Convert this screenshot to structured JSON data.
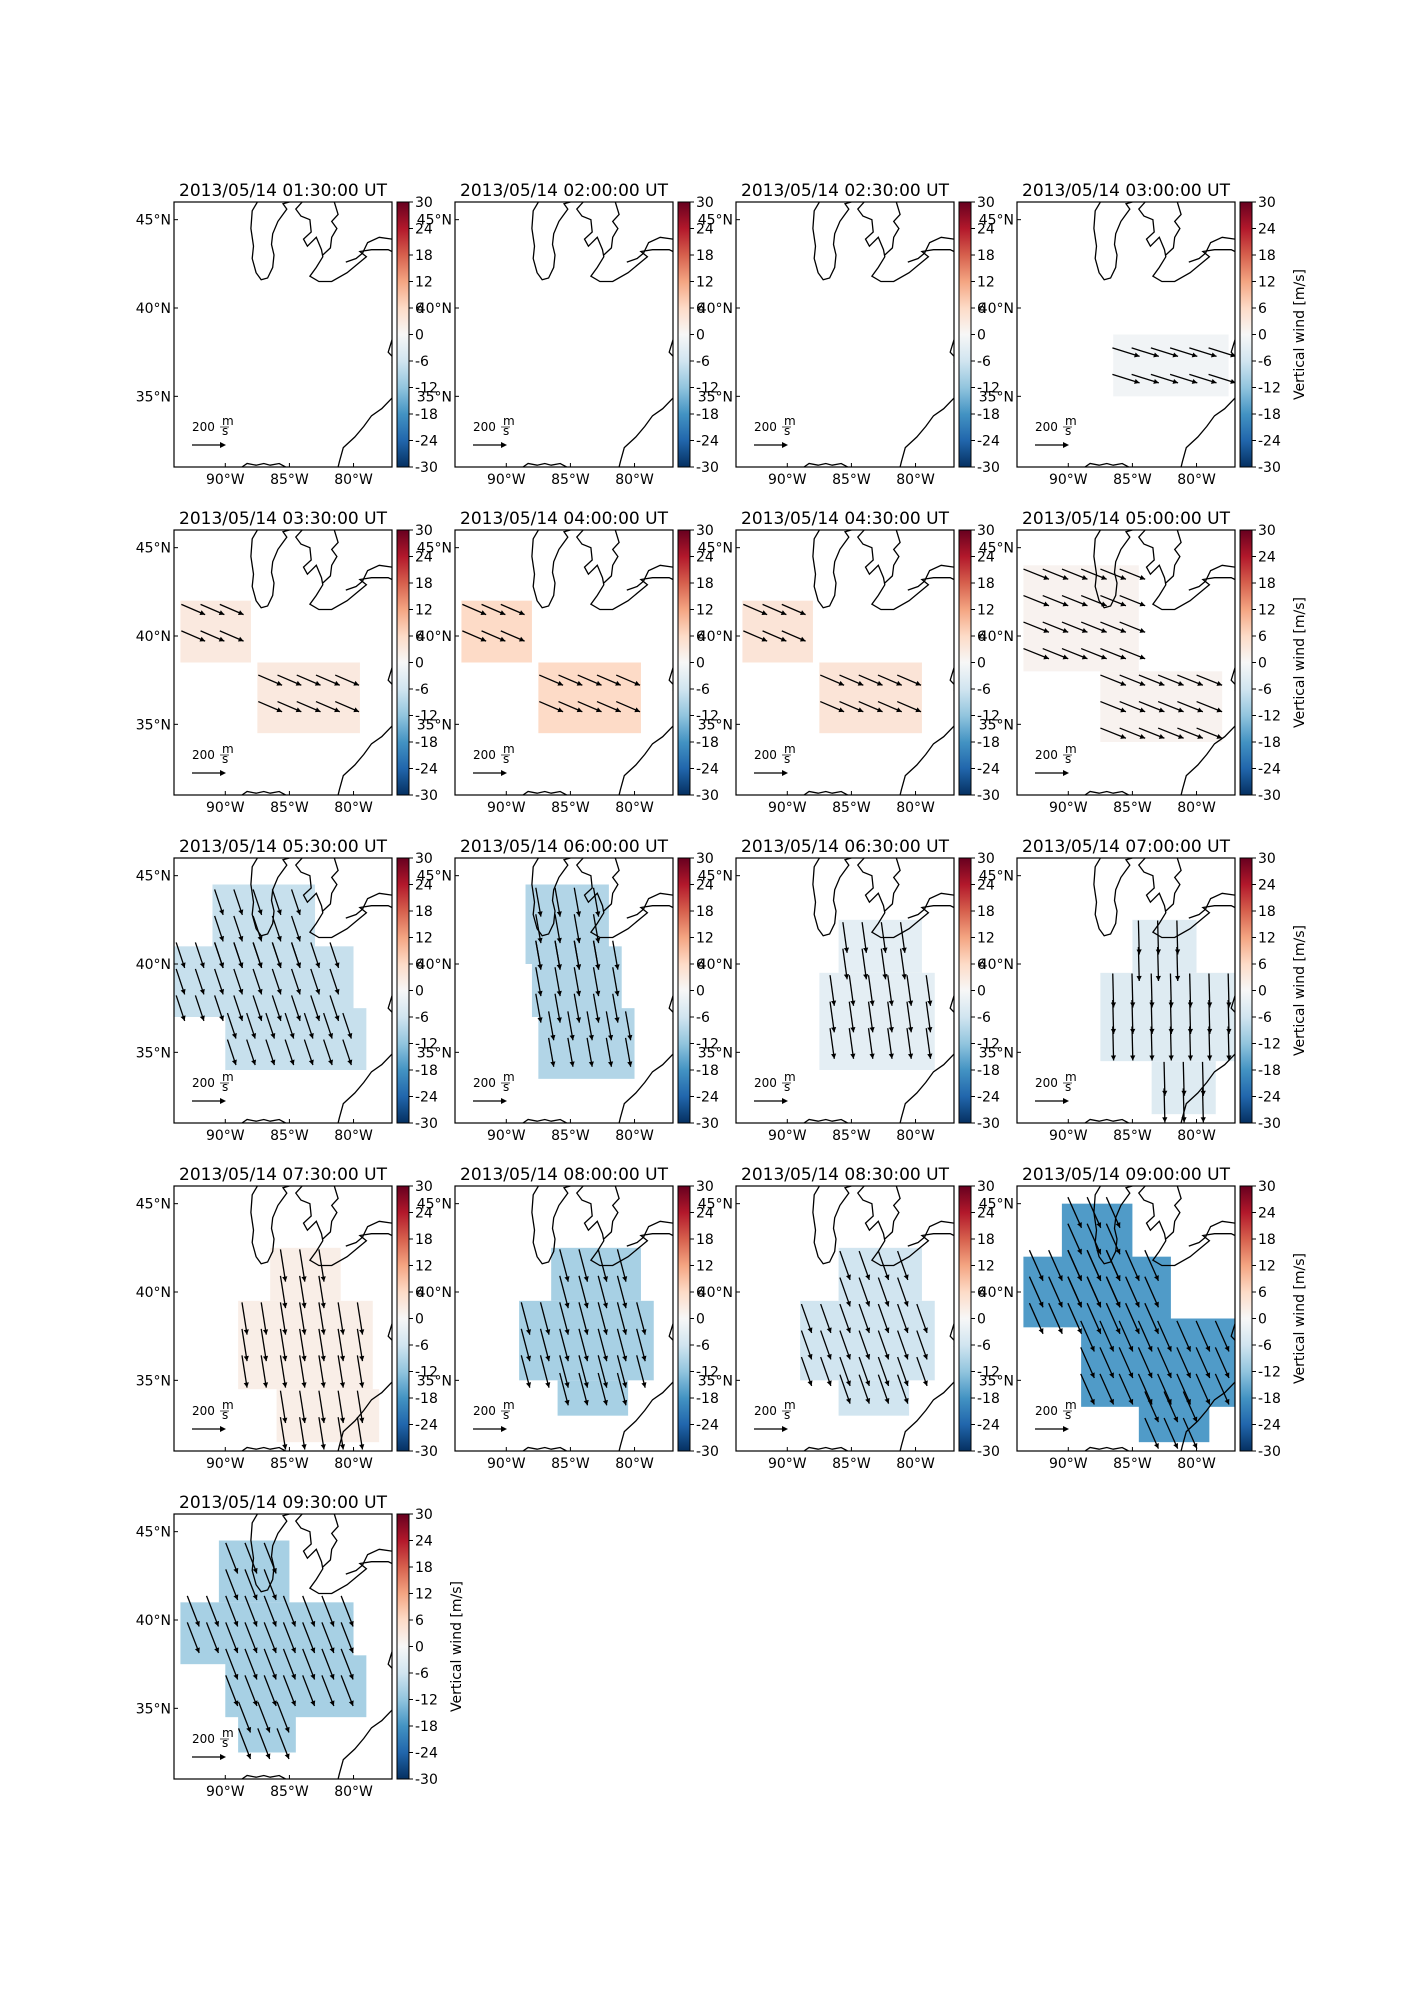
{
  "figure": {
    "colorbar": {
      "ticks": [
        30,
        24,
        18,
        12,
        6,
        0,
        -6,
        -12,
        -18,
        -24,
        -30
      ],
      "label": "Vertical wind [m/s]",
      "range": [
        -30,
        30
      ],
      "colormap": [
        "#053061",
        "#2166ac",
        "#4393c3",
        "#92c5de",
        "#d1e5f0",
        "#f7f7f7",
        "#fddbc7",
        "#f4a582",
        "#d6604d",
        "#b2182b",
        "#67001f"
      ]
    },
    "lon_ticks": [
      "90°W",
      "85°W",
      "80°W"
    ],
    "lat_ticks": [
      "45°N",
      "40°N",
      "35°N"
    ],
    "scale_arrow": {
      "value": "200",
      "unit_num": "m",
      "unit_den": "s"
    },
    "coast_color": "#000000",
    "arrow_color": "#000000"
  },
  "chart_data": [
    {
      "type": "heatmap",
      "title": "2013/05/14 01:30:00 UT",
      "value": null,
      "regions": [],
      "arrow": null
    },
    {
      "type": "heatmap",
      "title": "2013/05/14 02:00:00 UT",
      "value": null,
      "regions": [],
      "arrow": null
    },
    {
      "type": "heatmap",
      "title": "2013/05/14 02:30:00 UT",
      "value": null,
      "regions": [],
      "arrow": null
    },
    {
      "type": "heatmap",
      "title": "2013/05/14 03:00:00 UT",
      "value": -1,
      "regions": [
        {
          "lon": [
            -86.5,
            -77.5
          ],
          "lat": [
            35,
            38.5
          ]
        }
      ],
      "arrow": {
        "east": 160,
        "north": -50
      }
    },
    {
      "type": "heatmap",
      "title": "2013/05/14 03:30:00 UT",
      "value": 3,
      "regions": [
        {
          "lon": [
            -93.5,
            -88
          ],
          "lat": [
            38.5,
            42
          ]
        },
        {
          "lon": [
            -87.5,
            -79.5
          ],
          "lat": [
            34.5,
            38.5
          ]
        }
      ],
      "arrow": {
        "east": 140,
        "north": -60
      }
    },
    {
      "type": "heatmap",
      "title": "2013/05/14 04:00:00 UT",
      "value": 6,
      "regions": [
        {
          "lon": [
            -93.5,
            -88
          ],
          "lat": [
            38.5,
            42
          ]
        },
        {
          "lon": [
            -87.5,
            -79.5
          ],
          "lat": [
            34.5,
            38.5
          ]
        }
      ],
      "arrow": {
        "east": 140,
        "north": -60
      }
    },
    {
      "type": "heatmap",
      "title": "2013/05/14 04:30:00 UT",
      "value": 4,
      "regions": [
        {
          "lon": [
            -93.5,
            -88
          ],
          "lat": [
            38.5,
            42
          ]
        },
        {
          "lon": [
            -87.5,
            -79.5
          ],
          "lat": [
            34.5,
            38.5
          ]
        }
      ],
      "arrow": {
        "east": 140,
        "north": -60
      }
    },
    {
      "type": "heatmap",
      "title": "2013/05/14 05:00:00 UT",
      "value": 1,
      "regions": [
        {
          "lon": [
            -93.5,
            -84.5
          ],
          "lat": [
            38,
            44
          ]
        },
        {
          "lon": [
            -87.5,
            -78
          ],
          "lat": [
            34,
            38
          ]
        }
      ],
      "arrow": {
        "east": 150,
        "north": -60
      }
    },
    {
      "type": "heatmap",
      "title": "2013/05/14 05:30:00 UT",
      "value": -7,
      "regions": [
        {
          "lon": [
            -91,
            -83
          ],
          "lat": [
            40,
            44.5
          ]
        },
        {
          "lon": [
            -94,
            -80
          ],
          "lat": [
            37,
            41
          ]
        },
        {
          "lon": [
            -90,
            -79
          ],
          "lat": [
            34,
            37.5
          ]
        }
      ],
      "arrow": {
        "east": 50,
        "north": -150
      }
    },
    {
      "type": "heatmap",
      "title": "2013/05/14 06:00:00 UT",
      "value": -9,
      "regions": [
        {
          "lon": [
            -88.5,
            -82
          ],
          "lat": [
            40,
            44.5
          ]
        },
        {
          "lon": [
            -88,
            -81
          ],
          "lat": [
            37,
            41
          ]
        },
        {
          "lon": [
            -87.5,
            -80
          ],
          "lat": [
            33.5,
            37.5
          ]
        }
      ],
      "arrow": {
        "east": 30,
        "north": -170
      }
    },
    {
      "type": "heatmap",
      "title": "2013/05/14 06:30:00 UT",
      "value": -3,
      "regions": [
        {
          "lon": [
            -86,
            -79.5
          ],
          "lat": [
            39.5,
            42.5
          ]
        },
        {
          "lon": [
            -87.5,
            -78.5
          ],
          "lat": [
            34,
            39.5
          ]
        }
      ],
      "arrow": {
        "east": 25,
        "north": -180
      }
    },
    {
      "type": "heatmap",
      "title": "2013/05/14 07:00:00 UT",
      "value": -4,
      "regions": [
        {
          "lon": [
            -85,
            -80
          ],
          "lat": [
            39.5,
            42.5
          ]
        },
        {
          "lon": [
            -87.5,
            -77
          ],
          "lat": [
            34.5,
            39.5
          ]
        },
        {
          "lon": [
            -83.5,
            -78.5
          ],
          "lat": [
            31.5,
            34.5
          ]
        }
      ],
      "arrow": {
        "east": 5,
        "north": -200
      }
    },
    {
      "type": "heatmap",
      "title": "2013/05/14 07:30:00 UT",
      "value": 2,
      "regions": [
        {
          "lon": [
            -86.5,
            -81
          ],
          "lat": [
            39.5,
            42.5
          ]
        },
        {
          "lon": [
            -89,
            -78.5
          ],
          "lat": [
            34.5,
            39.5
          ]
        },
        {
          "lon": [
            -86,
            -78
          ],
          "lat": [
            31.5,
            34.5
          ]
        }
      ],
      "arrow": {
        "east": 30,
        "north": -190
      }
    },
    {
      "type": "heatmap",
      "title": "2013/05/14 08:00:00 UT",
      "value": -10,
      "regions": [
        {
          "lon": [
            -86.5,
            -79.5
          ],
          "lat": [
            39.5,
            42.5
          ]
        },
        {
          "lon": [
            -89,
            -78.5
          ],
          "lat": [
            35,
            39.5
          ]
        },
        {
          "lon": [
            -86,
            -80.5
          ],
          "lat": [
            33,
            35
          ]
        }
      ],
      "arrow": {
        "east": 50,
        "north": -190
      }
    },
    {
      "type": "heatmap",
      "title": "2013/05/14 08:30:00 UT",
      "value": -6,
      "regions": [
        {
          "lon": [
            -86,
            -79.5
          ],
          "lat": [
            39.5,
            42.5
          ]
        },
        {
          "lon": [
            -89,
            -78.5
          ],
          "lat": [
            35,
            39.5
          ]
        },
        {
          "lon": [
            -86,
            -80.5
          ],
          "lat": [
            33,
            35
          ]
        }
      ],
      "arrow": {
        "east": 60,
        "north": -170
      }
    },
    {
      "type": "heatmap",
      "title": "2013/05/14 09:00:00 UT",
      "value": -17,
      "regions": [
        {
          "lon": [
            -90.5,
            -85
          ],
          "lat": [
            39,
            45
          ]
        },
        {
          "lon": [
            -93.5,
            -82
          ],
          "lat": [
            38,
            42
          ]
        },
        {
          "lon": [
            -89,
            -77
          ],
          "lat": [
            33.5,
            38.5
          ]
        },
        {
          "lon": [
            -84.5,
            -79
          ],
          "lat": [
            31.5,
            34
          ]
        }
      ],
      "arrow": {
        "east": 80,
        "north": -180
      }
    },
    {
      "type": "heatmap",
      "title": "2013/05/14 09:30:00 UT",
      "value": -10,
      "regions": [
        {
          "lon": [
            -90.5,
            -85
          ],
          "lat": [
            41,
            44.5
          ]
        },
        {
          "lon": [
            -93.5,
            -80
          ],
          "lat": [
            37.5,
            41
          ]
        },
        {
          "lon": [
            -90,
            -79
          ],
          "lat": [
            34.5,
            38
          ]
        },
        {
          "lon": [
            -89,
            -84.5
          ],
          "lat": [
            32.5,
            35
          ]
        }
      ],
      "arrow": {
        "east": 70,
        "north": -180
      }
    }
  ]
}
